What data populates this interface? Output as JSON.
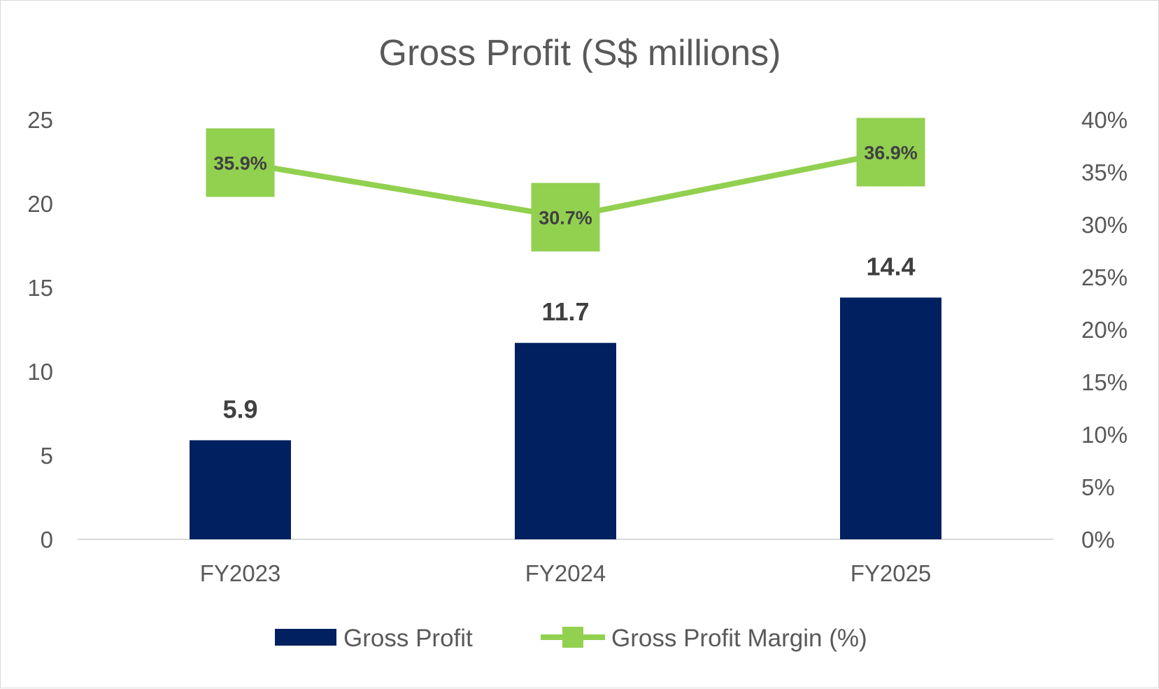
{
  "chart_data": {
    "type": "bar",
    "title": "Gross Profit (S$ millions)",
    "categories": [
      "FY2023",
      "FY2024",
      "FY2025"
    ],
    "series": [
      {
        "name": "Gross Profit",
        "type": "bar",
        "axis": "left",
        "values": [
          5.9,
          11.7,
          14.4
        ],
        "labels": [
          "5.9",
          "11.7",
          "14.4"
        ],
        "color": "#002060"
      },
      {
        "name": "Gross Profit Margin (%)",
        "type": "line",
        "axis": "right",
        "values": [
          35.9,
          30.7,
          36.9
        ],
        "labels": [
          "35.9%",
          "30.7%",
          "36.9%"
        ],
        "color": "#92D050"
      }
    ],
    "y_left": {
      "min": 0,
      "max": 25,
      "ticks": [
        "0",
        "5",
        "10",
        "15",
        "20",
        "25"
      ]
    },
    "y_right": {
      "min": 0,
      "max": 40,
      "ticks": [
        "0%",
        "5%",
        "10%",
        "15%",
        "20%",
        "25%",
        "30%",
        "35%",
        "40%"
      ]
    },
    "grid": false,
    "legend": "bottom"
  },
  "colors": {
    "bar": "#002060",
    "line": "#92D050",
    "axis_line": "#d9d9d9",
    "text": "#595959",
    "data_label": "#404040"
  }
}
